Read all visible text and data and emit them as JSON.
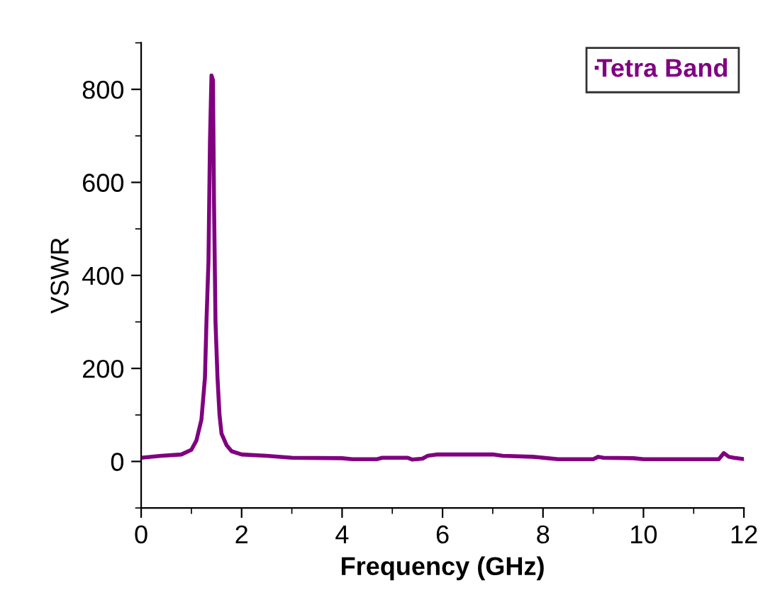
{
  "chart_data": {
    "type": "line",
    "xlabel": "Frequency (GHz)",
    "ylabel": "VSWR",
    "xlim": [
      0,
      12
    ],
    "xticks": [
      0,
      {
        "value": 1,
        "label": null
      },
      2,
      {
        "value": 3,
        "label": null
      },
      4,
      {
        "value": 5,
        "label": null
      },
      6,
      {
        "value": 7,
        "label": null
      },
      8,
      {
        "value": 9,
        "label": null
      },
      10,
      {
        "value": 11,
        "label": null
      },
      12
    ],
    "ylim": [
      -100,
      900
    ],
    "yticks": [
      {
        "value": -100,
        "label": null
      },
      0,
      {
        "value": 100,
        "label": null
      },
      200,
      {
        "value": 300,
        "label": null
      },
      400,
      {
        "value": 500,
        "label": null
      },
      600,
      {
        "value": 700,
        "label": null
      },
      800,
      {
        "value": 900,
        "label": null
      }
    ],
    "grid": false,
    "legend": "top right",
    "marker": "none",
    "line_style": "solid",
    "series": [
      {
        "name": "Tetra Band",
        "color": "#800080",
        "x": [
          0,
          0.4,
          0.8,
          1.0,
          1.1,
          1.2,
          1.27,
          1.3,
          1.34,
          1.37,
          1.4,
          1.43,
          1.45,
          1.48,
          1.52,
          1.56,
          1.6,
          1.7,
          1.8,
          2.0,
          2.5,
          3.0,
          4.0,
          4.2,
          4.7,
          4.8,
          5.3,
          5.4,
          5.6,
          5.7,
          5.9,
          7.0,
          7.2,
          7.8,
          8.3,
          9.0,
          9.1,
          9.2,
          9.8,
          10.0,
          11.5,
          11.6,
          11.7,
          11.8,
          12.0
        ],
        "values": [
          8,
          12,
          15,
          25,
          45,
          90,
          180,
          300,
          430,
          690,
          830,
          820,
          560,
          300,
          180,
          100,
          60,
          35,
          22,
          15,
          12,
          8,
          7,
          5,
          5,
          8,
          8,
          4,
          6,
          12,
          15,
          15,
          12,
          10,
          5,
          5,
          10,
          8,
          7,
          5,
          5,
          18,
          10,
          8,
          5
        ]
      }
    ]
  }
}
